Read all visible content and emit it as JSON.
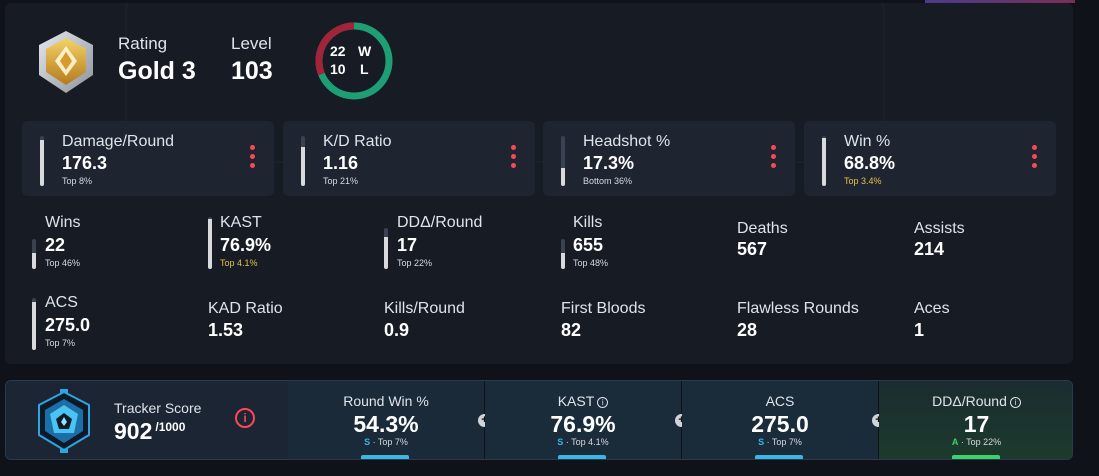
{
  "header": {
    "rating_label": "Rating",
    "rating_value": "Gold 3",
    "level_label": "Level",
    "level_value": "103",
    "wins_count": "22",
    "wins_letter": "W",
    "losses_count": "10",
    "losses_letter": "L"
  },
  "cards": [
    {
      "label": "Damage/Round",
      "value": "176.3",
      "rank": "Top 8%",
      "level": 0.92
    },
    {
      "label": "K/D Ratio",
      "value": "1.16",
      "rank": "Top 21%",
      "level": 0.79
    },
    {
      "label": "Headshot %",
      "value": "17.3%",
      "rank": "Bottom 36%",
      "level": 0.36
    },
    {
      "label": "Win %",
      "value": "68.8%",
      "rank": "Top 3.4%",
      "level": 0.97
    }
  ],
  "stats_row1": [
    {
      "label": "Wins",
      "value": "22",
      "rank": "Top 46%",
      "level": 0.54
    },
    {
      "label": "KAST",
      "value": "76.9%",
      "rank": "Top 4.1%",
      "level": 0.96
    },
    {
      "label": "DDΔ/Round",
      "value": "17",
      "rank": "Top 22%",
      "level": 0.78
    },
    {
      "label": "Kills",
      "value": "655",
      "rank": "Top 48%",
      "level": 0.52
    },
    {
      "label": "Deaths",
      "value": "567"
    },
    {
      "label": "Assists",
      "value": "214"
    }
  ],
  "stats_row2": [
    {
      "label": "ACS",
      "value": "275.0",
      "rank": "Top 7%",
      "level": 0.93
    },
    {
      "label": "KAD Ratio",
      "value": "1.53"
    },
    {
      "label": "Kills/Round",
      "value": "0.9"
    },
    {
      "label": "First Bloods",
      "value": "82"
    },
    {
      "label": "Flawless Rounds",
      "value": "28"
    },
    {
      "label": "Aces",
      "value": "1"
    }
  ],
  "tracker": {
    "label": "Tracker Score",
    "score": "902",
    "max": "/1000",
    "info_symbol": "i",
    "metrics": [
      {
        "label": "Round Win %",
        "value": "54.3%",
        "grade": "S",
        "rank": " · Top 7%",
        "bar_color": "#3ab5e6"
      },
      {
        "label": "KAST",
        "value": "76.9%",
        "grade": "S",
        "rank": " · Top 4.1%",
        "bar_color": "#3ab5e6"
      },
      {
        "label": "ACS",
        "value": "275.0",
        "grade": "S",
        "rank": " · Top 7%",
        "bar_color": "#3ab5e6"
      },
      {
        "label": "DDΔ/Round",
        "value": "17",
        "grade": "A",
        "rank": " · Top 22%",
        "bar_color": "#3dd36b"
      }
    ]
  },
  "colors": {
    "accent_red": "#ff4655",
    "win_green": "#1e9e74",
    "loss_red": "#a3243a",
    "gold_rank": "#e8c14a",
    "grade_s": "#3ab5e6",
    "grade_a": "#3dd36b"
  },
  "icons": {
    "rank": "gold-rank-icon",
    "tracker": "tracker-score-icon",
    "menu": "more-vertical-icon",
    "info": "info-icon",
    "plus": "plus-icon"
  }
}
